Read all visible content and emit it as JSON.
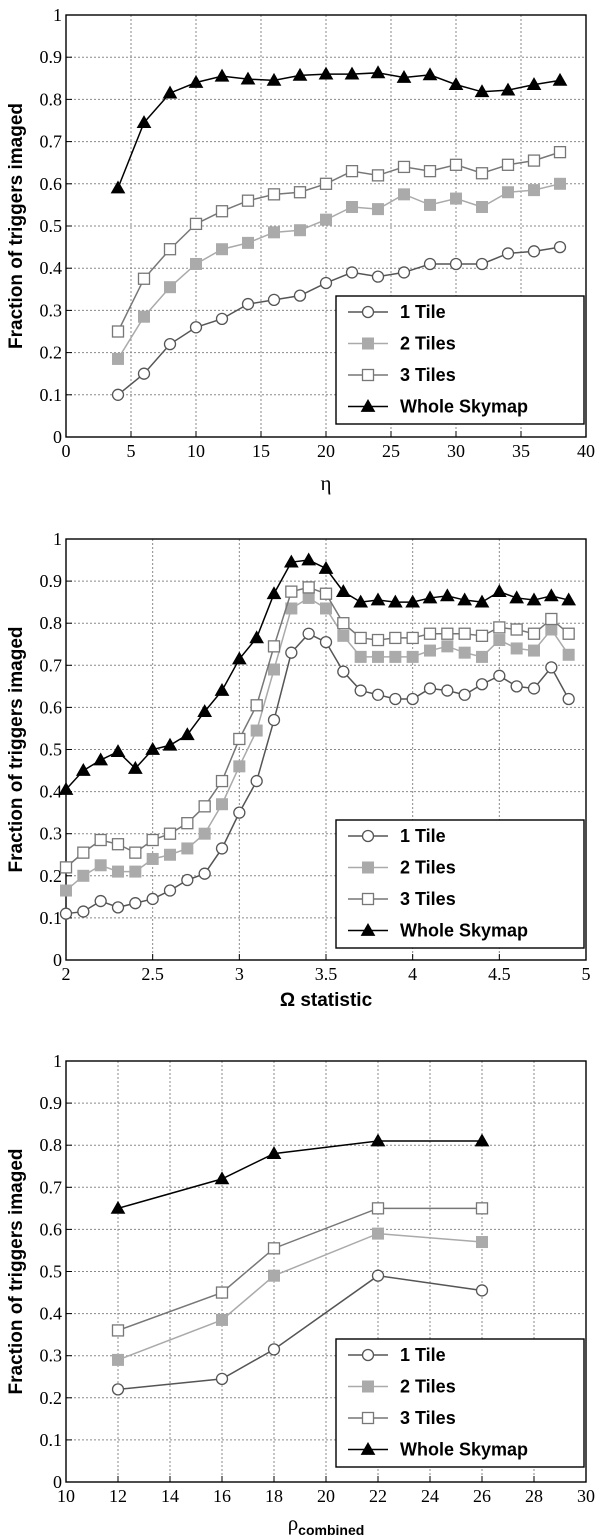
{
  "colors": {
    "one_tile": "#555555",
    "two_tiles": "#aaaaaa",
    "three_tiles": "#777777",
    "whole_skymap": "#000000"
  },
  "chart_data": [
    {
      "type": "line",
      "xlabel": "η",
      "xlabel_sub": "",
      "ylabel": "Fraction of triggers imaged",
      "xlim": [
        0,
        40
      ],
      "ylim": [
        0,
        1
      ],
      "xticks": [
        "0",
        "5",
        "10",
        "15",
        "20",
        "25",
        "30",
        "35",
        "40"
      ],
      "yticks": [
        "0",
        "0.1",
        "0.2",
        "0.3",
        "0.4",
        "0.5",
        "0.6",
        "0.7",
        "0.8",
        "0.9",
        "1"
      ],
      "legend_position": "lower-right",
      "x": [
        4,
        6,
        8,
        10,
        12,
        14,
        16,
        18,
        20,
        22,
        24,
        26,
        28,
        30,
        32,
        34,
        36,
        38
      ],
      "series": [
        {
          "name": "1 Tile",
          "marker": "circle-open",
          "color_key": "one_tile",
          "values": [
            0.1,
            0.15,
            0.22,
            0.26,
            0.28,
            0.315,
            0.325,
            0.335,
            0.365,
            0.39,
            0.38,
            0.39,
            0.41,
            0.41,
            0.41,
            0.435,
            0.44,
            0.45
          ]
        },
        {
          "name": "2 Tiles",
          "marker": "square-filled",
          "color_key": "two_tiles",
          "values": [
            0.185,
            0.285,
            0.355,
            0.41,
            0.445,
            0.46,
            0.485,
            0.49,
            0.515,
            0.545,
            0.54,
            0.575,
            0.55,
            0.565,
            0.545,
            0.58,
            0.585,
            0.6
          ]
        },
        {
          "name": "3 Tiles",
          "marker": "square-open",
          "color_key": "three_tiles",
          "values": [
            0.25,
            0.375,
            0.445,
            0.505,
            0.535,
            0.56,
            0.575,
            0.58,
            0.6,
            0.63,
            0.62,
            0.64,
            0.63,
            0.645,
            0.625,
            0.645,
            0.655,
            0.675
          ]
        },
        {
          "name": "Whole Skymap",
          "marker": "triangle-filled",
          "color_key": "whole_skymap",
          "values": [
            0.59,
            0.745,
            0.815,
            0.84,
            0.855,
            0.848,
            0.845,
            0.857,
            0.86,
            0.86,
            0.863,
            0.852,
            0.858,
            0.835,
            0.818,
            0.822,
            0.835,
            0.845
          ]
        }
      ]
    },
    {
      "type": "line",
      "xlabel": "Ω statistic",
      "xlabel_sub": "",
      "ylabel": "Fraction of triggers imaged",
      "xlim": [
        2,
        5
      ],
      "ylim": [
        0,
        1
      ],
      "xticks": [
        "2",
        "2.5",
        "3",
        "3.5",
        "4",
        "4.5",
        "5"
      ],
      "yticks": [
        "0",
        "0.1",
        "0.2",
        "0.3",
        "0.4",
        "0.5",
        "0.6",
        "0.7",
        "0.8",
        "0.9",
        "1"
      ],
      "legend_position": "lower-right",
      "x": [
        2.0,
        2.1,
        2.2,
        2.3,
        2.4,
        2.5,
        2.6,
        2.7,
        2.8,
        2.9,
        3.0,
        3.1,
        3.2,
        3.3,
        3.4,
        3.5,
        3.6,
        3.7,
        3.8,
        3.9,
        4.0,
        4.1,
        4.2,
        4.3,
        4.4,
        4.5,
        4.6,
        4.7,
        4.8,
        4.9
      ],
      "series": [
        {
          "name": "1 Tile",
          "marker": "circle-open",
          "color_key": "one_tile",
          "values": [
            0.11,
            0.115,
            0.14,
            0.125,
            0.135,
            0.145,
            0.165,
            0.19,
            0.205,
            0.265,
            0.35,
            0.425,
            0.57,
            0.73,
            0.775,
            0.755,
            0.685,
            0.64,
            0.63,
            0.62,
            0.62,
            0.645,
            0.64,
            0.63,
            0.655,
            0.675,
            0.65,
            0.645,
            0.695,
            0.62
          ]
        },
        {
          "name": "2 Tiles",
          "marker": "square-filled",
          "color_key": "two_tiles",
          "values": [
            0.165,
            0.2,
            0.225,
            0.21,
            0.21,
            0.24,
            0.25,
            0.265,
            0.3,
            0.37,
            0.46,
            0.545,
            0.69,
            0.835,
            0.86,
            0.835,
            0.77,
            0.72,
            0.72,
            0.72,
            0.72,
            0.735,
            0.745,
            0.73,
            0.72,
            0.76,
            0.74,
            0.735,
            0.785,
            0.725
          ]
        },
        {
          "name": "3 Tiles",
          "marker": "square-open",
          "color_key": "three_tiles",
          "values": [
            0.22,
            0.255,
            0.285,
            0.275,
            0.255,
            0.285,
            0.3,
            0.325,
            0.365,
            0.425,
            0.525,
            0.605,
            0.745,
            0.875,
            0.885,
            0.87,
            0.8,
            0.765,
            0.76,
            0.765,
            0.765,
            0.775,
            0.775,
            0.775,
            0.77,
            0.79,
            0.785,
            0.775,
            0.81,
            0.775
          ]
        },
        {
          "name": "Whole Skymap",
          "marker": "triangle-filled",
          "color_key": "whole_skymap",
          "values": [
            0.405,
            0.45,
            0.475,
            0.495,
            0.455,
            0.5,
            0.51,
            0.535,
            0.59,
            0.64,
            0.715,
            0.765,
            0.87,
            0.945,
            0.95,
            0.93,
            0.875,
            0.85,
            0.855,
            0.85,
            0.85,
            0.86,
            0.865,
            0.855,
            0.85,
            0.875,
            0.86,
            0.855,
            0.865,
            0.855
          ]
        }
      ]
    },
    {
      "type": "line",
      "xlabel": "ρ",
      "xlabel_sub": "combined",
      "ylabel": "Fraction of triggers imaged",
      "xlim": [
        10,
        30
      ],
      "ylim": [
        0,
        1
      ],
      "xticks": [
        "10",
        "12",
        "14",
        "16",
        "18",
        "20",
        "22",
        "24",
        "26",
        "28",
        "30"
      ],
      "yticks": [
        "0",
        "0.1",
        "0.2",
        "0.3",
        "0.4",
        "0.5",
        "0.6",
        "0.7",
        "0.8",
        "0.9",
        "1"
      ],
      "legend_position": "lower-right",
      "x": [
        12,
        16,
        18,
        22,
        26
      ],
      "series": [
        {
          "name": "1 Tile",
          "marker": "circle-open",
          "color_key": "one_tile",
          "values": [
            0.22,
            0.245,
            0.315,
            0.49,
            0.455
          ]
        },
        {
          "name": "2 Tiles",
          "marker": "square-filled",
          "color_key": "two_tiles",
          "values": [
            0.29,
            0.385,
            0.49,
            0.59,
            0.57
          ]
        },
        {
          "name": "3 Tiles",
          "marker": "square-open",
          "color_key": "three_tiles",
          "values": [
            0.36,
            0.45,
            0.555,
            0.65,
            0.65
          ]
        },
        {
          "name": "Whole Skymap",
          "marker": "triangle-filled",
          "color_key": "whole_skymap",
          "values": [
            0.65,
            0.72,
            0.78,
            0.81,
            0.81
          ]
        }
      ]
    }
  ]
}
